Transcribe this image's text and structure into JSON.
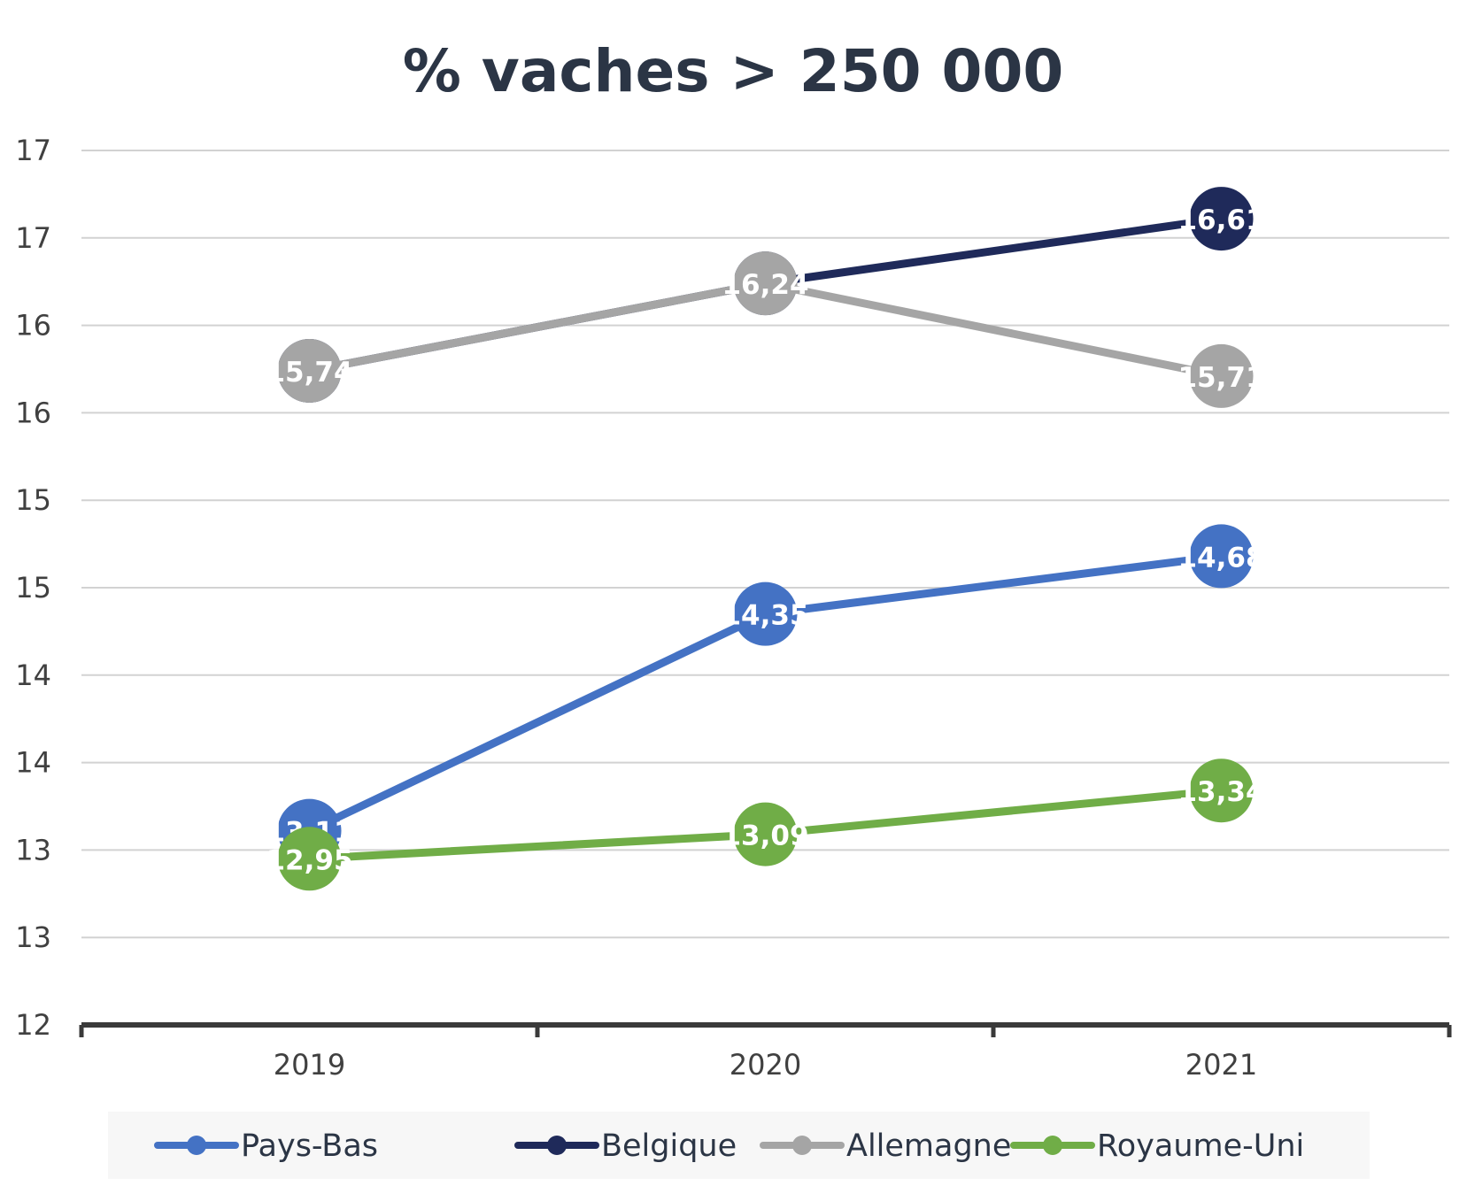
{
  "chart_data": {
    "type": "line",
    "title": "% vaches > 250 000",
    "categories": [
      "2019",
      "2020",
      "2021"
    ],
    "y_tick_labels": [
      "17",
      "17",
      "16",
      "16",
      "15",
      "15",
      "14",
      "14",
      "13",
      "13",
      "12"
    ],
    "ylim": [
      12.0,
      17.0
    ],
    "grid": true,
    "legend_position": "bottom",
    "series": [
      {
        "name": "Pays-Bas",
        "color": "#4472C4",
        "values": [
          13.11,
          14.35,
          14.68
        ],
        "labels": [
          "13,11",
          "14,35",
          "14,68"
        ],
        "label_color": "#ffffff"
      },
      {
        "name": "Belgique",
        "color": "#1F2A5A",
        "values": [
          15.74,
          16.24,
          16.61
        ],
        "labels": [
          "",
          "",
          "16,61"
        ],
        "label_color": "#ffffff"
      },
      {
        "name": "Allemagne",
        "color": "#A5A5A5",
        "values": [
          15.74,
          16.24,
          15.71
        ],
        "labels": [
          "15,74",
          "16,24",
          "15,71"
        ],
        "label_color": "#ffffff"
      },
      {
        "name": "Royaume-Uni",
        "color": "#70AD47",
        "values": [
          12.95,
          13.09,
          13.34
        ],
        "labels": [
          "12,95",
          "13,09",
          "13,34"
        ],
        "label_color": "#ffffff"
      }
    ]
  }
}
